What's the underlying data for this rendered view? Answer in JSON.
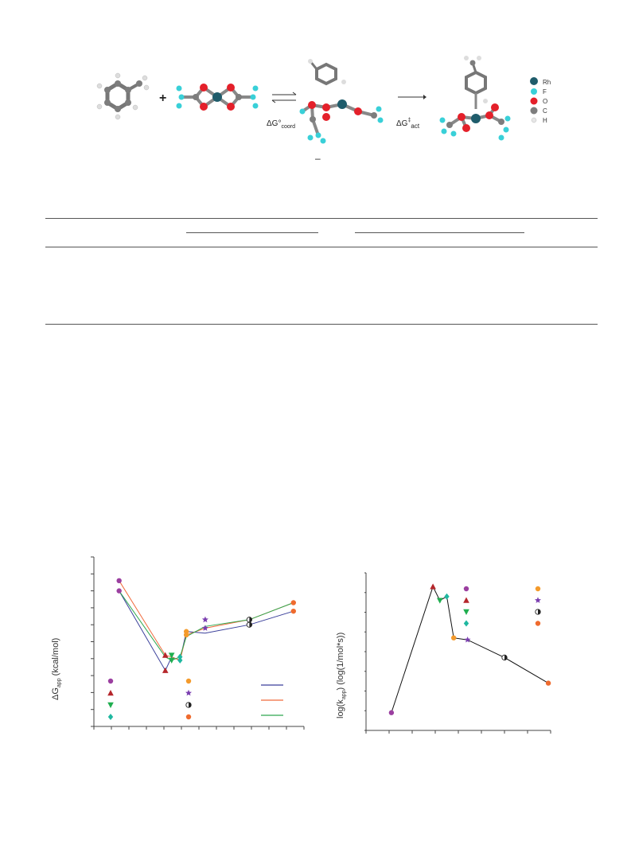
{
  "scheme": {
    "plus": "+",
    "delta_coord": "ΔG°",
    "delta_coord_sub": "coord",
    "delta_act": "ΔG",
    "delta_act_sup": "‡",
    "delta_act_sub": "act",
    "dash": "–",
    "legend": [
      {
        "label": "Rh",
        "color": "#1f5c6b"
      },
      {
        "label": "F",
        "color": "#39d0d8"
      },
      {
        "label": "O",
        "color": "#e4202a"
      },
      {
        "label": "C",
        "color": "#7d7d7d"
      },
      {
        "label": "H",
        "color": "#e6e6e6"
      }
    ]
  },
  "table": {},
  "chart_data": [
    {
      "type": "line",
      "ylabel": "ΔG",
      "ylabel_sub": "app",
      "ylabel_unit": " (kcal/mol)",
      "xlim": [
        0,
        10
      ],
      "ylim": [
        0,
        10
      ],
      "grid": false,
      "legend": "lower-left",
      "series": [
        {
          "color": "#3a3f9a",
          "points": [
            [
              1.2,
              8.0
            ],
            [
              3.4,
              3.3
            ],
            [
              3.7,
              4.1
            ],
            [
              4.1,
              3.9
            ],
            [
              4.4,
              5.6
            ],
            [
              5.3,
              5.5
            ],
            [
              7.4,
              6.0
            ],
            [
              9.5,
              6.8
            ]
          ]
        },
        {
          "color": "#f06a3c",
          "points": [
            [
              1.2,
              8.6
            ],
            [
              3.4,
              4.2
            ],
            [
              3.7,
              4.1
            ],
            [
              4.1,
              3.9
            ],
            [
              4.4,
              5.4
            ],
            [
              5.3,
              5.8
            ],
            [
              7.4,
              6.3
            ],
            [
              9.5,
              7.3
            ]
          ]
        },
        {
          "color": "#2fa84f",
          "points": [
            [
              1.2,
              8.0
            ],
            [
              3.4,
              4.1
            ],
            [
              3.7,
              3.9
            ],
            [
              4.1,
              4.1
            ],
            [
              4.4,
              5.3
            ],
            [
              5.3,
              5.9
            ],
            [
              7.4,
              6.3
            ],
            [
              9.5,
              7.3
            ]
          ]
        }
      ],
      "markers": [
        {
          "x": 1.2,
          "y": 8.6,
          "shape": "circle",
          "color": "#9b3fa0"
        },
        {
          "x": 1.2,
          "y": 8.0,
          "shape": "circle",
          "color": "#9b3fa0"
        },
        {
          "x": 3.4,
          "y": 4.2,
          "shape": "tri-up",
          "color": "#b5262b"
        },
        {
          "x": 3.4,
          "y": 3.3,
          "shape": "tri-up",
          "color": "#b5262b"
        },
        {
          "x": 3.7,
          "y": 3.9,
          "shape": "tri-down",
          "color": "#1fae4f"
        },
        {
          "x": 3.7,
          "y": 4.2,
          "shape": "tri-down",
          "color": "#1fae4f"
        },
        {
          "x": 4.1,
          "y": 4.1,
          "shape": "diamond",
          "color": "#1fb8a0"
        },
        {
          "x": 4.1,
          "y": 3.9,
          "shape": "diamond",
          "color": "#1fb8a0"
        },
        {
          "x": 4.4,
          "y": 5.6,
          "shape": "circle",
          "color": "#f49a2b"
        },
        {
          "x": 4.4,
          "y": 5.4,
          "shape": "circle",
          "color": "#f49a2b"
        },
        {
          "x": 5.3,
          "y": 5.8,
          "shape": "star",
          "color": "#7b3fb0"
        },
        {
          "x": 5.3,
          "y": 6.3,
          "shape": "star",
          "color": "#7b3fb0"
        },
        {
          "x": 7.4,
          "y": 6.3,
          "shape": "half-circle",
          "color": "#222222"
        },
        {
          "x": 7.4,
          "y": 6.0,
          "shape": "half-circle",
          "color": "#222222"
        },
        {
          "x": 9.5,
          "y": 7.3,
          "shape": "circle",
          "color": "#ef6b2e"
        },
        {
          "x": 9.5,
          "y": 6.8,
          "shape": "circle",
          "color": "#ef6b2e"
        }
      ],
      "legend_markers": [
        {
          "shape": "circle",
          "color": "#9b3fa0"
        },
        {
          "shape": "tri-up",
          "color": "#b5262b"
        },
        {
          "shape": "tri-down",
          "color": "#1fae4f"
        },
        {
          "shape": "diamond",
          "color": "#1fb8a0"
        },
        {
          "shape": "circle",
          "color": "#f49a2b"
        },
        {
          "shape": "star",
          "color": "#7b3fb0"
        },
        {
          "shape": "half-circle",
          "color": "#222222"
        },
        {
          "shape": "circle",
          "color": "#ef6b2e"
        }
      ],
      "legend_lines": [
        "#3a3f9a",
        "#f06a3c",
        "#2fa84f"
      ]
    },
    {
      "type": "line",
      "ylabel_pre": "log(k",
      "ylabel_sub": "app",
      "ylabel_post": ")  (log(1/mol*s))",
      "xlim": [
        0,
        8
      ],
      "ylim": [
        0,
        8
      ],
      "grid": false,
      "legend": "top-right",
      "series": [
        {
          "color": "#111111",
          "points": [
            [
              1.1,
              0.9
            ],
            [
              2.9,
              7.3
            ],
            [
              3.2,
              6.6
            ],
            [
              3.5,
              6.8
            ],
            [
              3.8,
              4.7
            ],
            [
              4.4,
              4.6
            ],
            [
              6.0,
              3.7
            ],
            [
              7.9,
              2.4
            ]
          ]
        }
      ],
      "markers": [
        {
          "x": 1.1,
          "y": 0.9,
          "shape": "circle",
          "color": "#9b3fa0"
        },
        {
          "x": 2.9,
          "y": 7.3,
          "shape": "tri-up",
          "color": "#b5262b"
        },
        {
          "x": 3.2,
          "y": 6.6,
          "shape": "tri-down",
          "color": "#1fae4f"
        },
        {
          "x": 3.5,
          "y": 6.8,
          "shape": "diamond",
          "color": "#1fb8a0"
        },
        {
          "x": 3.8,
          "y": 4.7,
          "shape": "circle",
          "color": "#f49a2b"
        },
        {
          "x": 4.4,
          "y": 4.6,
          "shape": "star",
          "color": "#7b3fb0"
        },
        {
          "x": 6.0,
          "y": 3.7,
          "shape": "half-circle",
          "color": "#222222"
        },
        {
          "x": 7.9,
          "y": 2.4,
          "shape": "circle",
          "color": "#ef6b2e"
        }
      ],
      "legend_markers": [
        {
          "shape": "circle",
          "color": "#9b3fa0"
        },
        {
          "shape": "tri-up",
          "color": "#b5262b"
        },
        {
          "shape": "tri-down",
          "color": "#1fae4f"
        },
        {
          "shape": "diamond",
          "color": "#1fb8a0"
        },
        {
          "shape": "circle",
          "color": "#f49a2b"
        },
        {
          "shape": "star",
          "color": "#7b3fb0"
        },
        {
          "shape": "half-circle",
          "color": "#222222"
        },
        {
          "shape": "circle",
          "color": "#ef6b2e"
        }
      ]
    }
  ]
}
